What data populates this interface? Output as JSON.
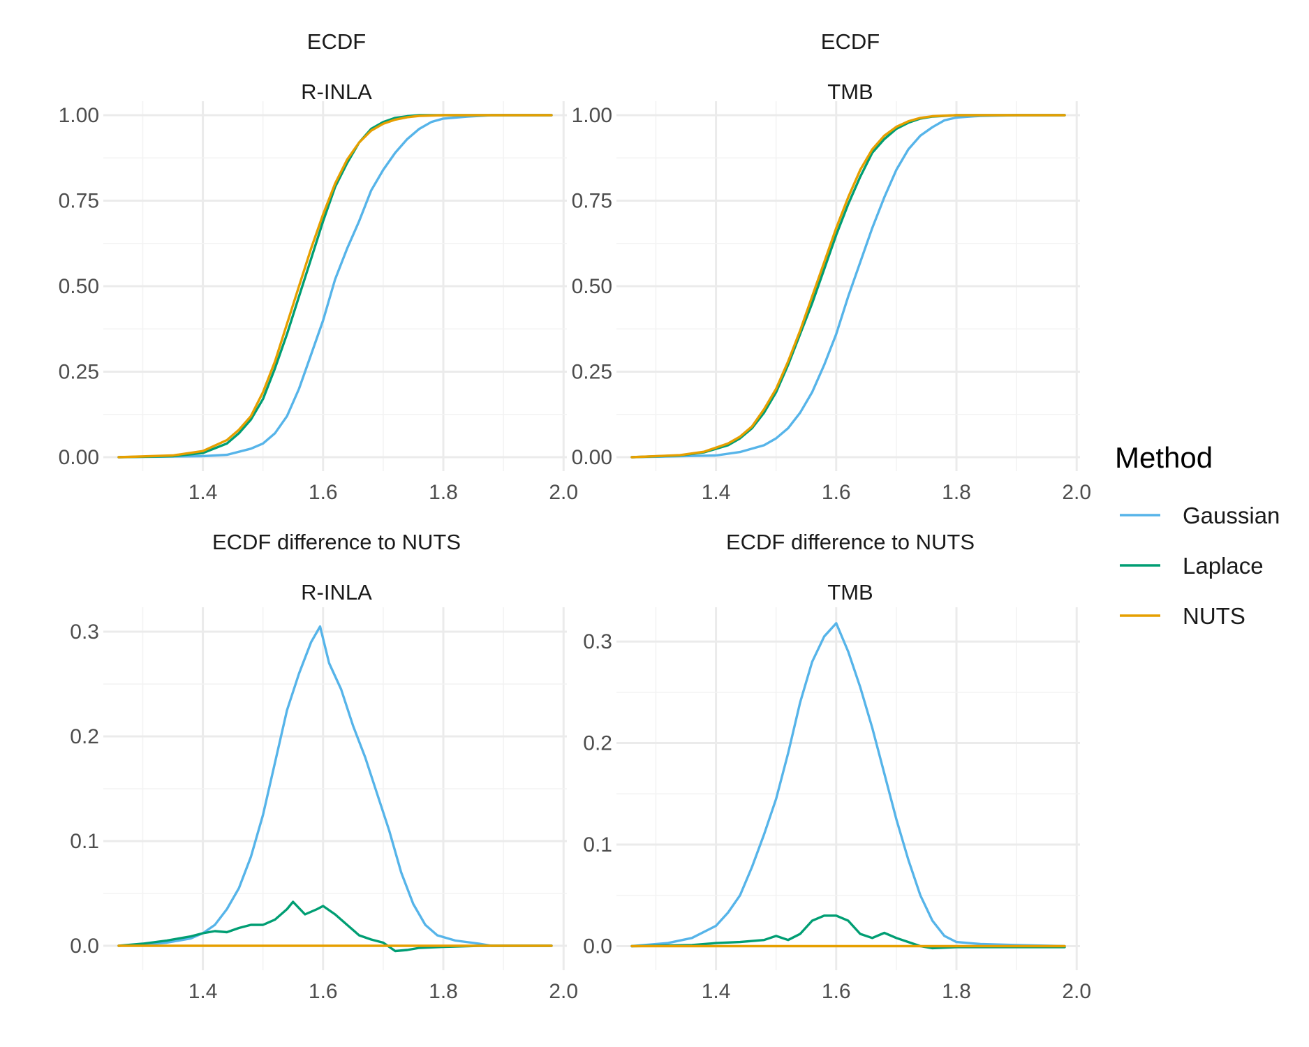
{
  "legend": {
    "title": "Method",
    "items": [
      {
        "label": "Gaussian",
        "color": "#56B4E9"
      },
      {
        "label": "Laplace",
        "color": "#009E73"
      },
      {
        "label": "NUTS",
        "color": "#E69F00"
      }
    ]
  },
  "chart_data": [
    {
      "type": "line",
      "title": "ECDF",
      "subtitle": "R-INLA",
      "xlim": [
        1.26,
        1.98
      ],
      "ylim": [
        0,
        1
      ],
      "xticks": [
        "1.4",
        "1.6",
        "1.8",
        "2.0"
      ],
      "yticks": [
        "0.00",
        "0.25",
        "0.50",
        "0.75",
        "1.00"
      ],
      "grid": true,
      "series": [
        {
          "name": "Gaussian",
          "color": "#56B4E9",
          "x": [
            1.26,
            1.4,
            1.44,
            1.48,
            1.5,
            1.52,
            1.54,
            1.56,
            1.58,
            1.6,
            1.62,
            1.64,
            1.66,
            1.68,
            1.7,
            1.72,
            1.74,
            1.76,
            1.78,
            1.8,
            1.84,
            1.88,
            1.98
          ],
          "y": [
            0,
            0.003,
            0.007,
            0.025,
            0.04,
            0.07,
            0.12,
            0.2,
            0.3,
            0.4,
            0.52,
            0.61,
            0.69,
            0.78,
            0.84,
            0.89,
            0.93,
            0.96,
            0.98,
            0.99,
            0.996,
            1.0,
            1.0
          ]
        },
        {
          "name": "Laplace",
          "color": "#009E73",
          "x": [
            1.26,
            1.35,
            1.4,
            1.44,
            1.46,
            1.48,
            1.5,
            1.52,
            1.54,
            1.56,
            1.58,
            1.6,
            1.62,
            1.64,
            1.66,
            1.68,
            1.7,
            1.72,
            1.74,
            1.76,
            1.8,
            1.98
          ],
          "y": [
            0,
            0.003,
            0.012,
            0.04,
            0.07,
            0.11,
            0.17,
            0.26,
            0.36,
            0.47,
            0.58,
            0.69,
            0.79,
            0.86,
            0.92,
            0.96,
            0.98,
            0.992,
            0.997,
            1.0,
            1.0,
            1.0
          ]
        },
        {
          "name": "NUTS",
          "color": "#E69F00",
          "x": [
            1.26,
            1.35,
            1.4,
            1.44,
            1.46,
            1.48,
            1.5,
            1.52,
            1.54,
            1.56,
            1.58,
            1.6,
            1.62,
            1.64,
            1.66,
            1.68,
            1.7,
            1.72,
            1.74,
            1.76,
            1.8,
            1.98
          ],
          "y": [
            0,
            0.005,
            0.018,
            0.05,
            0.08,
            0.12,
            0.19,
            0.28,
            0.39,
            0.5,
            0.61,
            0.71,
            0.8,
            0.87,
            0.92,
            0.955,
            0.975,
            0.987,
            0.994,
            0.998,
            1.0,
            1.0
          ]
        }
      ]
    },
    {
      "type": "line",
      "title": "ECDF",
      "subtitle": "TMB",
      "xlim": [
        1.26,
        1.98
      ],
      "ylim": [
        0,
        1
      ],
      "xticks": [
        "1.4",
        "1.6",
        "1.8",
        "2.0"
      ],
      "yticks": [
        "0.00",
        "0.25",
        "0.50",
        "0.75",
        "1.00"
      ],
      "grid": true,
      "series": [
        {
          "name": "Gaussian",
          "color": "#56B4E9",
          "x": [
            1.26,
            1.4,
            1.44,
            1.48,
            1.5,
            1.52,
            1.54,
            1.56,
            1.58,
            1.6,
            1.62,
            1.64,
            1.66,
            1.68,
            1.7,
            1.72,
            1.74,
            1.76,
            1.78,
            1.8,
            1.84,
            1.9,
            1.98
          ],
          "y": [
            0,
            0.005,
            0.015,
            0.035,
            0.055,
            0.085,
            0.13,
            0.19,
            0.27,
            0.36,
            0.47,
            0.57,
            0.67,
            0.76,
            0.84,
            0.9,
            0.94,
            0.965,
            0.985,
            0.993,
            0.998,
            1.0,
            1.0
          ]
        },
        {
          "name": "Laplace",
          "color": "#009E73",
          "x": [
            1.26,
            1.34,
            1.38,
            1.42,
            1.44,
            1.46,
            1.48,
            1.5,
            1.52,
            1.54,
            1.56,
            1.58,
            1.6,
            1.62,
            1.64,
            1.66,
            1.68,
            1.7,
            1.72,
            1.74,
            1.76,
            1.8,
            1.98
          ],
          "y": [
            0,
            0.005,
            0.014,
            0.035,
            0.055,
            0.085,
            0.13,
            0.19,
            0.27,
            0.36,
            0.45,
            0.55,
            0.65,
            0.74,
            0.82,
            0.89,
            0.93,
            0.96,
            0.978,
            0.99,
            0.996,
            1.0,
            1.0
          ]
        },
        {
          "name": "NUTS",
          "color": "#E69F00",
          "x": [
            1.26,
            1.34,
            1.38,
            1.42,
            1.44,
            1.46,
            1.48,
            1.5,
            1.52,
            1.54,
            1.56,
            1.58,
            1.6,
            1.62,
            1.64,
            1.66,
            1.68,
            1.7,
            1.72,
            1.74,
            1.76,
            1.8,
            1.98
          ],
          "y": [
            0,
            0.006,
            0.016,
            0.04,
            0.06,
            0.09,
            0.14,
            0.2,
            0.28,
            0.37,
            0.47,
            0.57,
            0.67,
            0.76,
            0.84,
            0.9,
            0.94,
            0.966,
            0.982,
            0.992,
            0.997,
            1.0,
            1.0
          ]
        }
      ]
    },
    {
      "type": "line",
      "title": "ECDF difference to NUTS",
      "subtitle": "R-INLA",
      "xlim": [
        1.26,
        1.98
      ],
      "ylim": [
        -0.01,
        0.31
      ],
      "xticks": [
        "1.4",
        "1.6",
        "1.8",
        "2.0"
      ],
      "yticks": [
        "0.0",
        "0.1",
        "0.2",
        "0.3"
      ],
      "grid": true,
      "series": [
        {
          "name": "Gaussian",
          "color": "#56B4E9",
          "x": [
            1.26,
            1.3,
            1.34,
            1.38,
            1.4,
            1.42,
            1.44,
            1.46,
            1.48,
            1.5,
            1.52,
            1.54,
            1.56,
            1.58,
            1.595,
            1.61,
            1.63,
            1.65,
            1.67,
            1.69,
            1.71,
            1.73,
            1.75,
            1.77,
            1.79,
            1.82,
            1.86,
            1.88,
            1.98
          ],
          "y": [
            0,
            0.001,
            0.003,
            0.007,
            0.012,
            0.02,
            0.035,
            0.055,
            0.085,
            0.125,
            0.175,
            0.225,
            0.26,
            0.29,
            0.305,
            0.27,
            0.245,
            0.21,
            0.18,
            0.145,
            0.11,
            0.07,
            0.04,
            0.02,
            0.01,
            0.005,
            0.002,
            0,
            0
          ]
        },
        {
          "name": "Laplace",
          "color": "#009E73",
          "x": [
            1.26,
            1.3,
            1.34,
            1.38,
            1.4,
            1.42,
            1.44,
            1.46,
            1.48,
            1.5,
            1.52,
            1.54,
            1.55,
            1.57,
            1.59,
            1.6,
            1.62,
            1.64,
            1.66,
            1.68,
            1.7,
            1.72,
            1.74,
            1.76,
            1.8,
            1.86,
            1.98
          ],
          "y": [
            0,
            0.002,
            0.005,
            0.009,
            0.012,
            0.014,
            0.013,
            0.017,
            0.02,
            0.02,
            0.025,
            0.035,
            0.042,
            0.03,
            0.035,
            0.038,
            0.03,
            0.02,
            0.01,
            0.006,
            0.003,
            -0.005,
            -0.004,
            -0.002,
            -0.001,
            0,
            0
          ]
        },
        {
          "name": "NUTS",
          "color": "#E69F00",
          "x": [
            1.26,
            1.98
          ],
          "y": [
            0,
            0
          ]
        }
      ]
    },
    {
      "type": "line",
      "title": "ECDF difference to NUTS",
      "subtitle": "TMB",
      "xlim": [
        1.26,
        1.98
      ],
      "ylim": [
        -0.01,
        0.32
      ],
      "xticks": [
        "1.4",
        "1.6",
        "1.8",
        "2.0"
      ],
      "yticks": [
        "0.0",
        "0.1",
        "0.2",
        "0.3"
      ],
      "grid": true,
      "series": [
        {
          "name": "Gaussian",
          "color": "#56B4E9",
          "x": [
            1.26,
            1.32,
            1.36,
            1.4,
            1.42,
            1.44,
            1.46,
            1.48,
            1.5,
            1.52,
            1.54,
            1.56,
            1.58,
            1.6,
            1.62,
            1.64,
            1.66,
            1.68,
            1.7,
            1.72,
            1.74,
            1.76,
            1.78,
            1.8,
            1.84,
            1.9,
            1.98
          ],
          "y": [
            0,
            0.003,
            0.008,
            0.02,
            0.033,
            0.05,
            0.078,
            0.11,
            0.145,
            0.19,
            0.24,
            0.28,
            0.305,
            0.318,
            0.29,
            0.255,
            0.215,
            0.17,
            0.125,
            0.085,
            0.05,
            0.025,
            0.01,
            0.004,
            0.002,
            0.001,
            0
          ]
        },
        {
          "name": "Laplace",
          "color": "#009E73",
          "x": [
            1.26,
            1.36,
            1.4,
            1.44,
            1.48,
            1.5,
            1.52,
            1.54,
            1.56,
            1.58,
            1.6,
            1.62,
            1.64,
            1.66,
            1.68,
            1.7,
            1.72,
            1.74,
            1.76,
            1.8,
            1.98
          ],
          "y": [
            0,
            0.001,
            0.003,
            0.004,
            0.006,
            0.01,
            0.006,
            0.012,
            0.025,
            0.03,
            0.03,
            0.025,
            0.012,
            0.008,
            0.013,
            0.008,
            0.004,
            0,
            -0.002,
            -0.001,
            -0.001
          ]
        },
        {
          "name": "NUTS",
          "color": "#E69F00",
          "x": [
            1.26,
            1.98
          ],
          "y": [
            0,
            0
          ]
        }
      ]
    }
  ]
}
